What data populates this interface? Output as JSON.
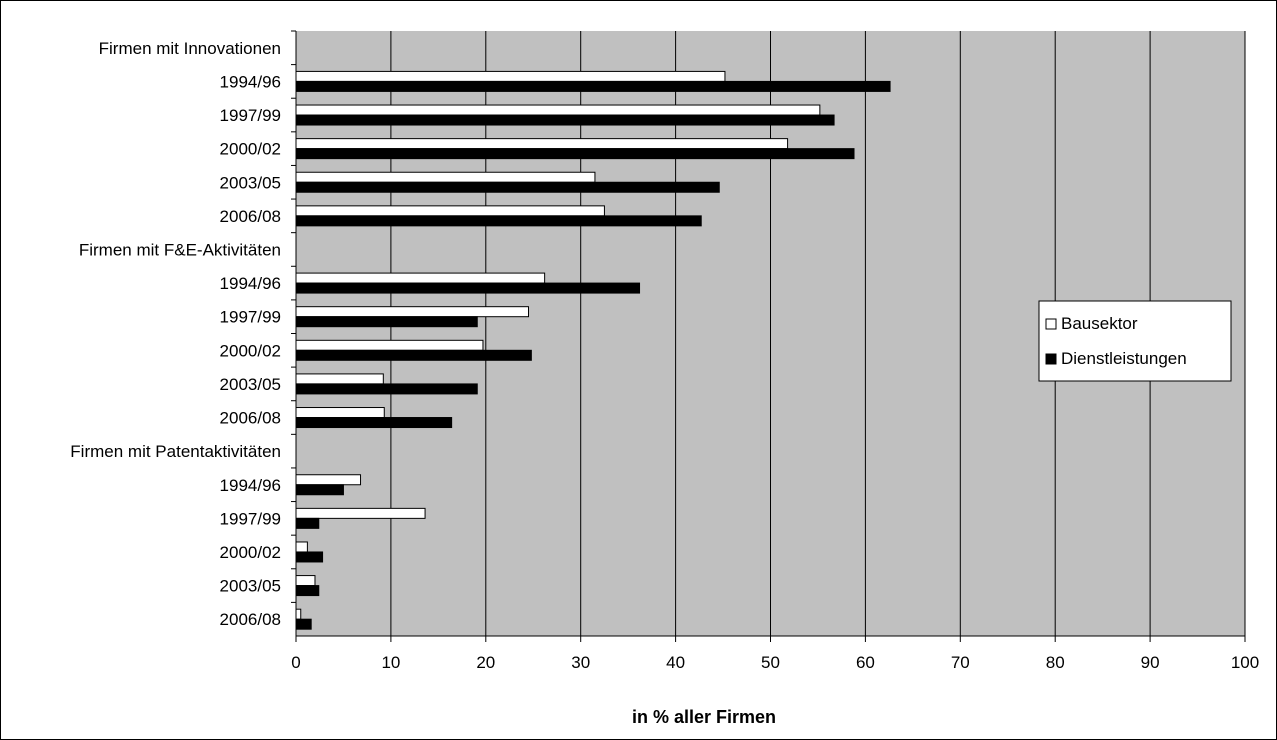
{
  "chart_data": {
    "type": "bar",
    "orientation": "horizontal",
    "categories": [
      "Firmen mit Innovationen",
      "1994/96",
      "1997/99",
      "2000/02",
      "2003/05",
      "2006/08",
      "Firmen mit F&E-Aktivitäten",
      "1994/96",
      "1997/99",
      "2000/02",
      "2003/05",
      "2006/08",
      "Firmen mit Patentaktivitäten",
      "1994/96",
      "1997/99",
      "2000/02",
      "2003/05",
      "2006/08"
    ],
    "series": [
      {
        "name": "Bausektor",
        "color": "#ffffff",
        "values": [
          null,
          45.2,
          55.2,
          51.8,
          31.5,
          32.5,
          null,
          26.2,
          24.5,
          19.7,
          9.2,
          9.3,
          null,
          6.8,
          13.6,
          1.2,
          2.0,
          0.5
        ]
      },
      {
        "name": "Dienstleistungen",
        "color": "#000000",
        "values": [
          null,
          62.6,
          56.7,
          58.8,
          44.6,
          42.7,
          null,
          36.2,
          19.1,
          24.8,
          19.1,
          16.4,
          null,
          5.0,
          2.4,
          2.8,
          2.4,
          1.6
        ]
      }
    ],
    "title": "",
    "xlabel": "in % aller Firmen",
    "ylabel": "",
    "xlim": [
      0,
      100
    ],
    "xticks": [
      "0",
      "10",
      "20",
      "30",
      "40",
      "50",
      "60",
      "70",
      "80",
      "90",
      "100"
    ],
    "grid": true,
    "legend_position": "right",
    "plot_background": "#c0c0c0"
  }
}
